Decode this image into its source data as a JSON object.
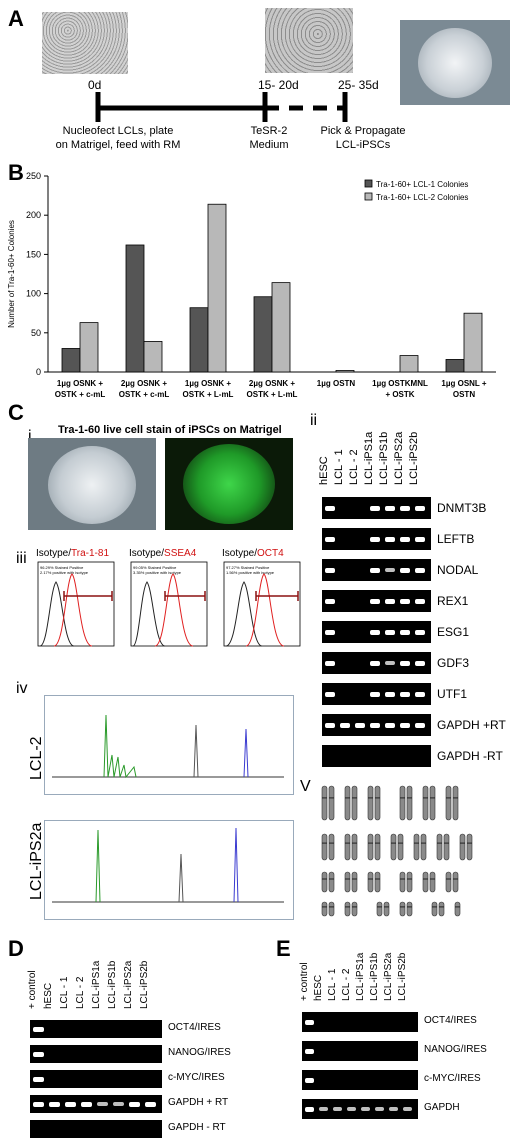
{
  "panels": {
    "A": "A",
    "B": "B",
    "C": "C",
    "D": "D",
    "E": "E"
  },
  "panelA": {
    "times": [
      "0d",
      "15- 20d",
      "25- 35d"
    ],
    "notes": [
      "Nucleofect LCLs, plate",
      "on Matrigel, feed with RM",
      "TeSR-2",
      "Medium",
      "Pick & Propagate",
      "LCL-iPSCs"
    ]
  },
  "chart_data": {
    "type": "bar",
    "ylabel": "Number of Tra-1-60+ Colonies",
    "ylim": [
      0,
      250
    ],
    "yticks": [
      0,
      50,
      100,
      150,
      200,
      250
    ],
    "categories": [
      [
        "1µg OSNK +",
        "OSTK + c-mL"
      ],
      [
        "2µg OSNK +",
        "OSTK + c-mL"
      ],
      [
        "1µg OSNK +",
        "OSTK + L-mL"
      ],
      [
        "2µg OSNK +",
        "OSTK + L-mL"
      ],
      [
        "1µg OSTN",
        ""
      ],
      [
        "1µg OSTKMNL",
        "+ OSTK"
      ],
      [
        "1µg OSNL +",
        "OSTN"
      ]
    ],
    "series": [
      {
        "name": "Tra-1-60+ LCL-1 Colonies",
        "color": "#555555",
        "values": [
          30,
          162,
          82,
          96,
          0,
          0,
          16
        ]
      },
      {
        "name": "Tra-1-60+ LCL-2 Colonies",
        "color": "#b8b8b8",
        "values": [
          63,
          39,
          214,
          114,
          2,
          21,
          75
        ]
      }
    ],
    "legend": "top-right"
  },
  "panelC": {
    "i_label": "i",
    "i_title": "Tra-1-60 live cell stain of iPSCs on Matrigel",
    "ii_label": "ii",
    "iii_label": "iii",
    "iv_label": "iv",
    "v_label": "V",
    "flow": [
      {
        "isotype": "Isotype/",
        "marker": "Tra-1-81",
        "stat1": "96.29% Stained Positive",
        "stat2": "2.17% positive with isotype"
      },
      {
        "isotype": "Isotype/",
        "marker": "SSEA4",
        "stat1": "99.05% Stained Positive",
        "stat2": "3.35% positive with isotype"
      },
      {
        "isotype": "Isotype/",
        "marker": "OCT4",
        "stat1": "97.27% Stained Positive",
        "stat2": "1.56% positive with isotype"
      }
    ],
    "trace_labels": [
      "LCL-2",
      "LCL-iPS2a"
    ],
    "lanes": [
      "hESC",
      "LCL - 1",
      "LCL - 2",
      "LCL-iPS1a",
      "LCL-iPS1b",
      "LCL-iPS2a",
      "LCL-iPS2b"
    ],
    "genes": [
      "DNMT3B",
      "LEFTB",
      "NODAL",
      "REX1",
      "ESG1",
      "GDF3",
      "UTF1",
      "GAPDH +RT",
      "GAPDH -RT"
    ]
  },
  "panelD": {
    "lanes": [
      "+ control",
      "hESC",
      "LCL - 1",
      "LCL - 2",
      "LCL-iPS1a",
      "LCL-iPS1b",
      "LCL-iPS2a",
      "LCL-iPS2b"
    ],
    "genes": [
      "OCT4/IRES",
      "NANOG/IRES",
      "c-MYC/IRES",
      "GAPDH + RT",
      "GAPDH - RT"
    ]
  },
  "panelE": {
    "lanes": [
      "+ control",
      "hESC",
      "LCL - 1",
      "LCL - 2",
      "LCL-iPS1a",
      "LCL-iPS1b",
      "LCL-iPS2a",
      "LCL-iPS2b"
    ],
    "genes": [
      "OCT4/IRES",
      "NANOG/IRES",
      "c-MYC/IRES",
      "GAPDH"
    ]
  }
}
